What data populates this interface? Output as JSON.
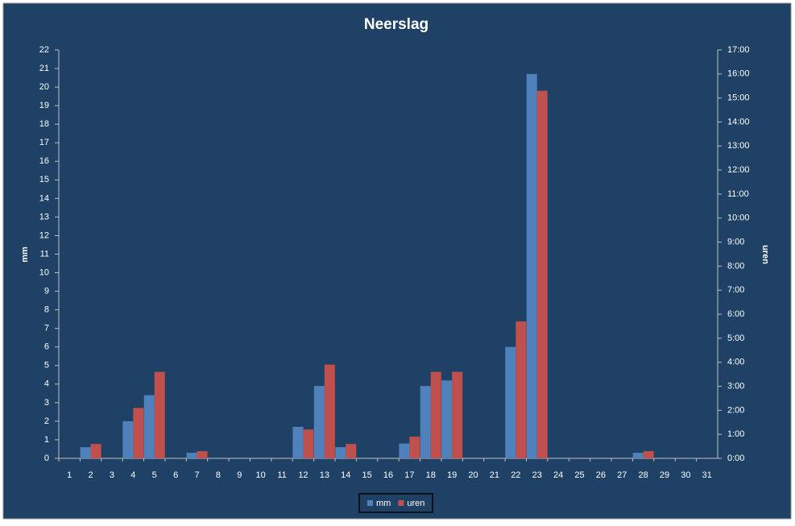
{
  "chart_data": {
    "type": "bar",
    "title": "Neerslag",
    "y_label": "mm",
    "y2_label": "uren",
    "categories": [
      "1",
      "2",
      "3",
      "4",
      "5",
      "6",
      "7",
      "8",
      "9",
      "10",
      "11",
      "12",
      "13",
      "14",
      "15",
      "16",
      "17",
      "18",
      "19",
      "20",
      "21",
      "22",
      "23",
      "24",
      "25",
      "26",
      "27",
      "28",
      "29",
      "30",
      "31"
    ],
    "series": [
      {
        "name": "mm",
        "color": "#4f81bd",
        "values": [
          0,
          0.6,
          0,
          2.0,
          3.4,
          0,
          0.3,
          0,
          0,
          0,
          0,
          1.7,
          3.9,
          0.6,
          0,
          0,
          0.8,
          3.9,
          4.2,
          0,
          0,
          6.0,
          20.7,
          0,
          0,
          0,
          0,
          0.3,
          0,
          0,
          0
        ]
      },
      {
        "name": "uren",
        "color": "#c0504d",
        "axis": "y2",
        "values": [
          0,
          0.6,
          0,
          2.1,
          3.6,
          0,
          0.3,
          0,
          0,
          0,
          0,
          1.2,
          3.9,
          0.6,
          0,
          0,
          0.9,
          3.6,
          3.6,
          0,
          0,
          5.7,
          15.3,
          0,
          0,
          0,
          0,
          0.3,
          0,
          0,
          0
        ]
      }
    ],
    "ylim": [
      0,
      22
    ],
    "yticks": [
      0,
      1,
      2,
      3,
      4,
      5,
      6,
      7,
      8,
      9,
      10,
      11,
      12,
      13,
      14,
      15,
      16,
      17,
      18,
      19,
      20,
      21,
      22
    ],
    "y2lim": [
      0,
      17
    ],
    "y2ticks": [
      {
        "value": 0,
        "label": "0:00"
      },
      {
        "value": 1,
        "label": "1:00"
      },
      {
        "value": 2,
        "label": "2:00"
      },
      {
        "value": 3,
        "label": "3:00"
      },
      {
        "value": 4,
        "label": "4:00"
      },
      {
        "value": 5,
        "label": "5:00"
      },
      {
        "value": 6,
        "label": "6:00"
      },
      {
        "value": 7,
        "label": "7:00"
      },
      {
        "value": 8,
        "label": "8:00"
      },
      {
        "value": 9,
        "label": "9:00"
      },
      {
        "value": 10,
        "label": "10:00"
      },
      {
        "value": 11,
        "label": "11:00"
      },
      {
        "value": 12,
        "label": "12:00"
      },
      {
        "value": 13,
        "label": "13:00"
      },
      {
        "value": 14,
        "label": "14:00"
      },
      {
        "value": 15,
        "label": "15:00"
      },
      {
        "value": 16,
        "label": "16:00"
      },
      {
        "value": 17,
        "label": "17:00"
      }
    ],
    "legend": "bottom",
    "grid": false
  }
}
